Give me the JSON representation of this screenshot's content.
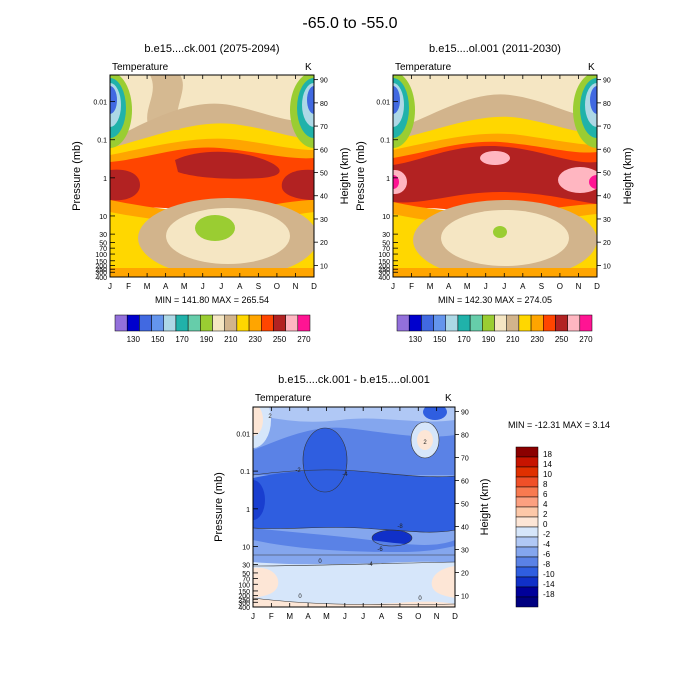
{
  "figure": {
    "title": "-65.0 to -55.0"
  },
  "chart_data": [
    {
      "type": "heatmap",
      "panel": "top-left",
      "title": "b.e15....ck.001 (2075-2094)",
      "variable": "Temperature",
      "units": "K",
      "xlabel": "",
      "ylabel": "Pressure (mb)",
      "ylabel_right": "Height (km)",
      "months": [
        "J",
        "F",
        "M",
        "A",
        "M",
        "J",
        "J",
        "A",
        "S",
        "O",
        "N",
        "D"
      ],
      "pressure_ticks": [
        "0.01",
        "0.1",
        "1",
        "10",
        "30",
        "50",
        "70",
        "100",
        "150",
        "200",
        "250",
        "300",
        "400"
      ],
      "height_ticks": [
        "10",
        "20",
        "30",
        "40",
        "50",
        "60",
        "70",
        "80",
        "90"
      ],
      "stats": "MIN = 141.80  MAX = 265.54",
      "min": 141.8,
      "max": 265.54
    },
    {
      "type": "heatmap",
      "panel": "top-right",
      "title": "b.e15....ol.001 (2011-2030)",
      "variable": "Temperature",
      "units": "K",
      "xlabel": "",
      "ylabel": "Pressure (mb)",
      "ylabel_right": "Height (km)",
      "months": [
        "J",
        "F",
        "M",
        "A",
        "M",
        "J",
        "J",
        "A",
        "S",
        "O",
        "N",
        "D"
      ],
      "pressure_ticks": [
        "0.01",
        "0.1",
        "1",
        "10",
        "30",
        "50",
        "70",
        "100",
        "150",
        "200",
        "250",
        "300",
        "400"
      ],
      "height_ticks": [
        "10",
        "20",
        "30",
        "40",
        "50",
        "60",
        "70",
        "80",
        "90"
      ],
      "stats": "MIN = 142.30  MAX = 274.05",
      "min": 142.3,
      "max": 274.05
    },
    {
      "type": "heatmap",
      "panel": "bottom-center",
      "title": "b.e15....ck.001 - b.e15....ol.001",
      "variable": "Temperature",
      "units": "K",
      "xlabel": "",
      "ylabel": "Pressure (mb)",
      "ylabel_right": "Height (km)",
      "months": [
        "J",
        "F",
        "M",
        "A",
        "M",
        "J",
        "J",
        "A",
        "S",
        "O",
        "N",
        "D"
      ],
      "pressure_ticks": [
        "0.01",
        "0.1",
        "1",
        "10",
        "30",
        "50",
        "70",
        "100",
        "150",
        "200",
        "250",
        "300",
        "400"
      ],
      "height_ticks": [
        "10",
        "20",
        "30",
        "40",
        "50",
        "60",
        "70",
        "80",
        "90"
      ],
      "stats": "MIN = -12.31  MAX =   3.14",
      "min": -12.31,
      "max": 3.14
    }
  ],
  "colorbar_abs": {
    "labels": [
      "130",
      "150",
      "170",
      "190",
      "210",
      "230",
      "250",
      "270"
    ],
    "colors": [
      "#9370db",
      "#0000cd",
      "#4169e1",
      "#6495ed",
      "#add8e6",
      "#20b2aa",
      "#66cdaa",
      "#9acd32",
      "#f5e6c3",
      "#d2b48c",
      "#ffd700",
      "#ffa500",
      "#ff4500",
      "#b22222",
      "#ffb6c1",
      "#ff1493"
    ]
  },
  "colorbar_diff": {
    "labels": [
      "18",
      "14",
      "10",
      "8",
      "6",
      "4",
      "2",
      "0",
      "-2",
      "-4",
      "-6",
      "-8",
      "-10",
      "-14",
      "-18"
    ],
    "colors": [
      "#8b0000",
      "#c71400",
      "#e03000",
      "#f05028",
      "#f87a50",
      "#fca080",
      "#fdc8a8",
      "#fde6d6",
      "#d6e6fa",
      "#b0c8f5",
      "#84a6ee",
      "#5a82e6",
      "#2f5ee0",
      "#1030c8",
      "#00009a",
      "#000080"
    ]
  },
  "contour_labels": {
    "diff": [
      "-2",
      "-4",
      "-6",
      "-8",
      "0",
      "2"
    ]
  }
}
